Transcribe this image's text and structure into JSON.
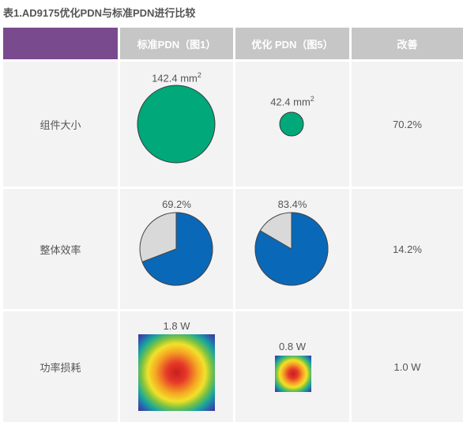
{
  "caption": "表1.AD9175优化PDN与标准PDN进行比较",
  "headers": {
    "corner": "",
    "standard": "标准PDN（图1）",
    "optimized": "优化 PDN（图5）",
    "improvement": "改善"
  },
  "rows": [
    {
      "label": "组件大小",
      "standard": {
        "value_text": "142.4 mm",
        "sup": "2",
        "area_mm2": 142.4
      },
      "optimized": {
        "value_text": "42.4 mm",
        "sup": "2",
        "area_mm2": 42.4
      },
      "improvement": "70.2%"
    },
    {
      "label": "整体效率",
      "standard": {
        "value_text": "69.2%",
        "efficiency": 0.692
      },
      "optimized": {
        "value_text": "83.4%",
        "efficiency": 0.834
      },
      "improvement": "14.2%"
    },
    {
      "label": "功率损耗",
      "standard": {
        "value_text": "1.8 W",
        "power_w": 1.8
      },
      "optimized": {
        "value_text": "0.8 W",
        "power_w": 0.8
      },
      "improvement": "1.0 W"
    }
  ],
  "colors": {
    "header_accent": "#7a4a8f",
    "header_gray": "#c6c6c6",
    "cell_bg": "#f3f3f3",
    "size_circle": "#00a87a",
    "pie_efficiency": "#0a68b8",
    "pie_loss": "#d9d9d9"
  }
}
